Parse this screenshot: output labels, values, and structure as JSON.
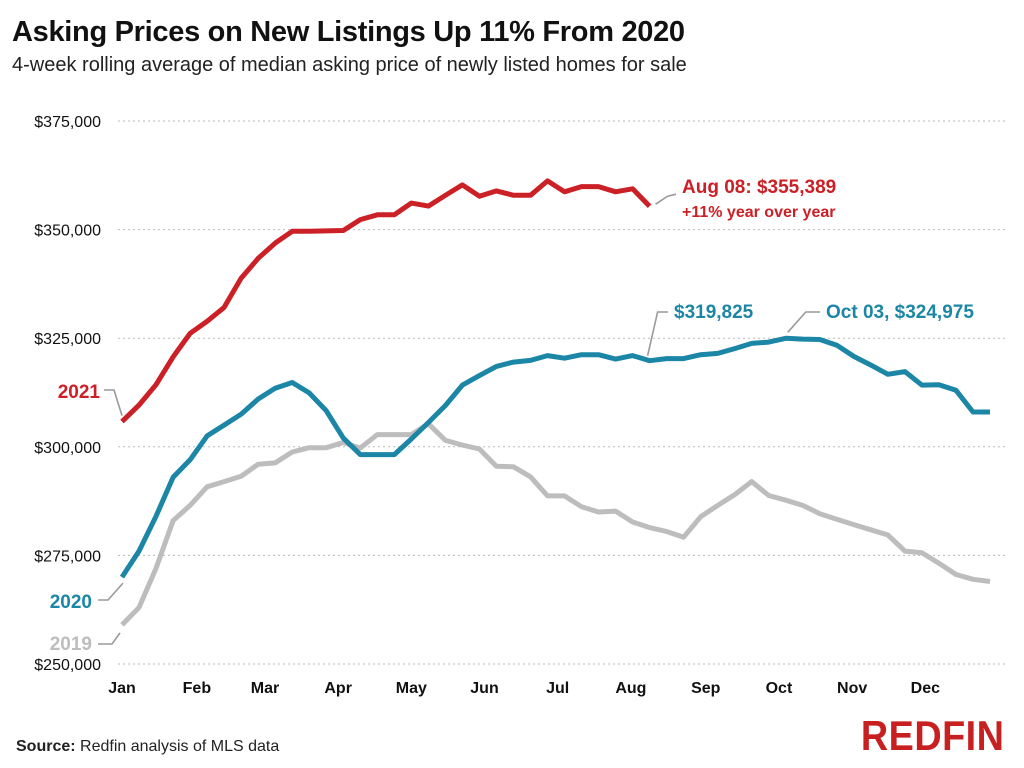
{
  "header": {
    "title": "Asking Prices on New Listings Up 11% From 2020",
    "subtitle": "4-week rolling average of median asking price of newly listed homes for sale"
  },
  "footer": {
    "source_label": "Source:",
    "source_text": "Redfin analysis of MLS data",
    "logo_text": "REDFIN"
  },
  "chart_data": {
    "type": "line",
    "title": "Asking Prices on New Listings Up 11% From 2020",
    "subtitle": "4-week rolling average of median asking price of newly listed homes for sale",
    "xlabel": "",
    "ylabel": "",
    "x_unit": "week of year",
    "xlim": [
      1,
      52
    ],
    "ylim": [
      250000,
      375000
    ],
    "y_ticks": [
      250000,
      275000,
      300000,
      325000,
      350000,
      375000
    ],
    "y_tick_labels": [
      "$250,000",
      "$275,000",
      "$300,000",
      "$325,000",
      "$350,000",
      "$375,000"
    ],
    "x_ticks": [
      {
        "week": 1,
        "label": "Jan"
      },
      {
        "week": 5.4,
        "label": "Feb"
      },
      {
        "week": 9.4,
        "label": "Mar"
      },
      {
        "week": 13.7,
        "label": "Apr"
      },
      {
        "week": 18,
        "label": "May"
      },
      {
        "week": 22.3,
        "label": "Jun"
      },
      {
        "week": 26.6,
        "label": "Jul"
      },
      {
        "week": 30.9,
        "label": "Aug"
      },
      {
        "week": 35.3,
        "label": "Sep"
      },
      {
        "week": 39.6,
        "label": "Oct"
      },
      {
        "week": 43.9,
        "label": "Nov"
      },
      {
        "week": 48.2,
        "label": "Dec"
      }
    ],
    "grid": true,
    "series": [
      {
        "name": "2019",
        "color": "#bdbdbd",
        "x": [
          1,
          2,
          3,
          4,
          5,
          6,
          7,
          8,
          9,
          10,
          11,
          12,
          13,
          14,
          15,
          16,
          17,
          18,
          19,
          20,
          21,
          22,
          23,
          24,
          25,
          26,
          27,
          28,
          29,
          30,
          31,
          32,
          33,
          34,
          35,
          36,
          37,
          38,
          39,
          40,
          41,
          42,
          43,
          44,
          45,
          46,
          47,
          48,
          49,
          50,
          51,
          52
        ],
        "values": [
          259000,
          263000,
          272000,
          283000,
          286500,
          290800,
          292000,
          293200,
          296000,
          296300,
          298800,
          299800,
          299800,
          301000,
          299700,
          302800,
          302800,
          302800,
          305300,
          301500,
          300400,
          299500,
          295500,
          295400,
          293100,
          288700,
          288700,
          286200,
          285000,
          285200,
          282700,
          281400,
          280500,
          279200,
          283900,
          286500,
          289000,
          292000,
          288800,
          287700,
          286500,
          284600,
          283300,
          282100,
          280900,
          279700,
          276000,
          275600,
          273200,
          270600,
          269500,
          269000
        ]
      },
      {
        "name": "2020",
        "color": "#1b86a6",
        "x": [
          1,
          2,
          3,
          4,
          5,
          6,
          7,
          8,
          9,
          10,
          11,
          12,
          13,
          14,
          15,
          16,
          17,
          18,
          19,
          20,
          21,
          22,
          23,
          24,
          25,
          26,
          27,
          28,
          29,
          30,
          31,
          32,
          33,
          34,
          35,
          36,
          37,
          38,
          39,
          40,
          41,
          42,
          43,
          44,
          45,
          46,
          47,
          48,
          49,
          50,
          51,
          52
        ],
        "values": [
          270000,
          276000,
          284000,
          293000,
          297000,
          302500,
          305000,
          307500,
          311000,
          313500,
          314800,
          312400,
          308300,
          302000,
          298200,
          298200,
          298200,
          301800,
          305600,
          309500,
          314200,
          316400,
          318500,
          319500,
          319900,
          321000,
          320400,
          321200,
          321200,
          320200,
          321000,
          319825,
          320300,
          320300,
          321200,
          321500,
          322600,
          323800,
          324100,
          324975,
          324800,
          324700,
          323400,
          320800,
          318800,
          316700,
          317300,
          314200,
          314300,
          313000,
          308000,
          308000
        ]
      },
      {
        "name": "2021",
        "color": "#cc2027",
        "x": [
          1,
          2,
          3,
          4,
          5,
          6,
          7,
          8,
          9,
          10,
          11,
          12,
          13,
          14,
          15,
          16,
          17,
          18,
          19,
          20,
          21,
          22,
          23,
          24,
          25,
          26,
          27,
          28,
          29,
          30,
          31,
          32
        ],
        "values": [
          305800,
          309600,
          314300,
          320700,
          326100,
          328900,
          332100,
          338800,
          343400,
          346900,
          349600,
          349600,
          349700,
          349800,
          352300,
          353400,
          353400,
          356100,
          355400,
          357900,
          360300,
          357700,
          358900,
          357900,
          357900,
          361200,
          358700,
          359900,
          359900,
          358700,
          359400,
          355389
        ]
      }
    ],
    "series_labels": [
      {
        "series": "2021",
        "text": "2021"
      },
      {
        "series": "2020",
        "text": "2020"
      },
      {
        "series": "2019",
        "text": "2019"
      }
    ],
    "annotations": [
      {
        "series": "2021",
        "week": 32,
        "value": 355389,
        "line1": "Aug 08: $355,389",
        "line2": "+11% year over year",
        "color": "#cc2027"
      },
      {
        "series": "2020",
        "week": 32,
        "value": 319825,
        "text": "$319,825",
        "color": "#1b86a6"
      },
      {
        "series": "2020",
        "week": 40,
        "value": 324975,
        "text": "Oct 03, $324,975",
        "color": "#1b86a6"
      }
    ]
  }
}
